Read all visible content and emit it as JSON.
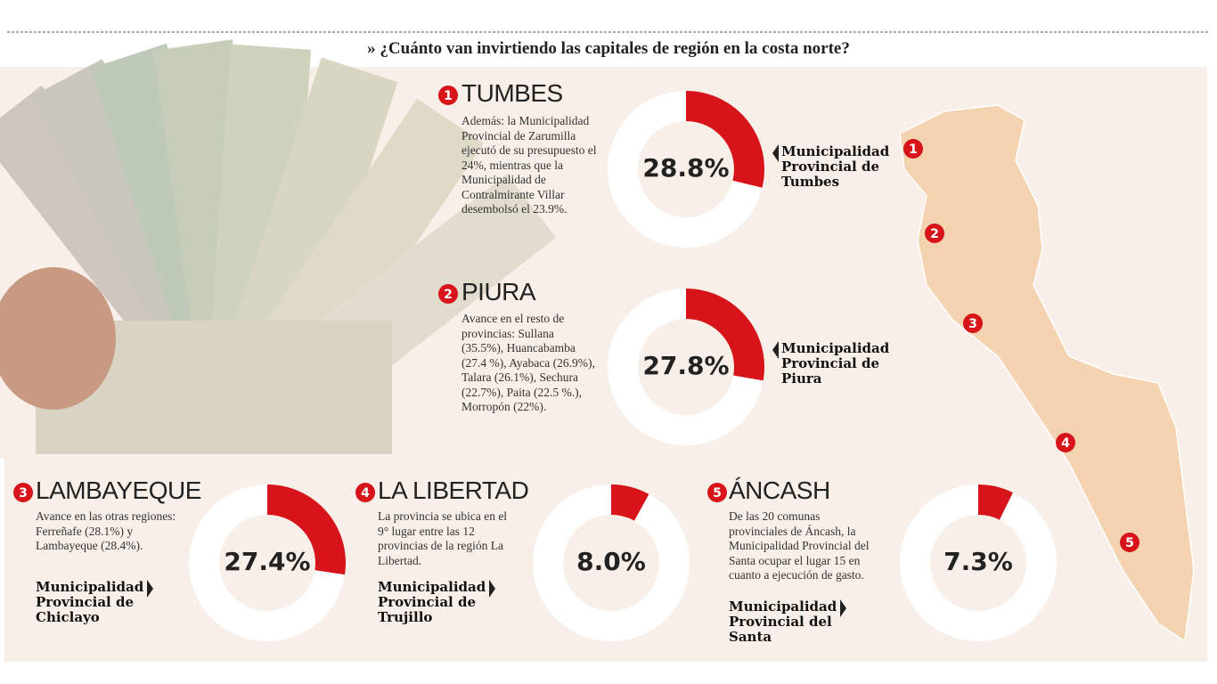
{
  "title": "» ¿Cuánto van invirtiendo las capitales de región en la costa norte?",
  "regions": [
    {
      "number": "1",
      "name": "TUMBES",
      "text": "Además: la Municipalidad Provincial de Zarumilla ejecutó de su presupuesto el 24%, mientras que la Municipalidad de Contralmirante Villar desembolsó el 23.9%.",
      "value": 28.8,
      "value_label": "28.8%",
      "municipality": "Municipalidad Provincial de Tumbes"
    },
    {
      "number": "2",
      "name": "PIURA",
      "text": "Avance en el resto de provincias: Sullana (35.5%), Huancabamba (27.4 %), Ayabaca (26.9%), Talara (26.1%), Sechura (22.7%), Paita (22.5 %.), Morropón (22%).",
      "value": 27.8,
      "value_label": "27.8%",
      "municipality": "Municipalidad Provincial de Piura"
    },
    {
      "number": "3",
      "name": "LAMBAYEQUE",
      "text": "Avance en las otras regiones: Ferreñafe (28.1%) y Lambayeque (28.4%).",
      "value": 27.4,
      "value_label": "27.4%",
      "municipality": "Municipalidad Provincial de Chiclayo"
    },
    {
      "number": "4",
      "name": "LA LIBERTAD",
      "text": "La provincia se ubica en el 9° lugar entre las 12 provincias de la región La Libertad.",
      "value": 8.0,
      "value_label": "8.0%",
      "municipality": "Municipalidad Provincial de Trujillo"
    },
    {
      "number": "5",
      "name": "ÁNCASH",
      "text": "De las 20 comunas provinciales de Áncash, la Municipalidad Provincial del Santa ocupar el lugar 15 en cuanto a ejecución de gasto.",
      "value": 7.3,
      "value_label": "7.3%",
      "municipality": "Municipalidad Provincial del Santa"
    }
  ]
}
